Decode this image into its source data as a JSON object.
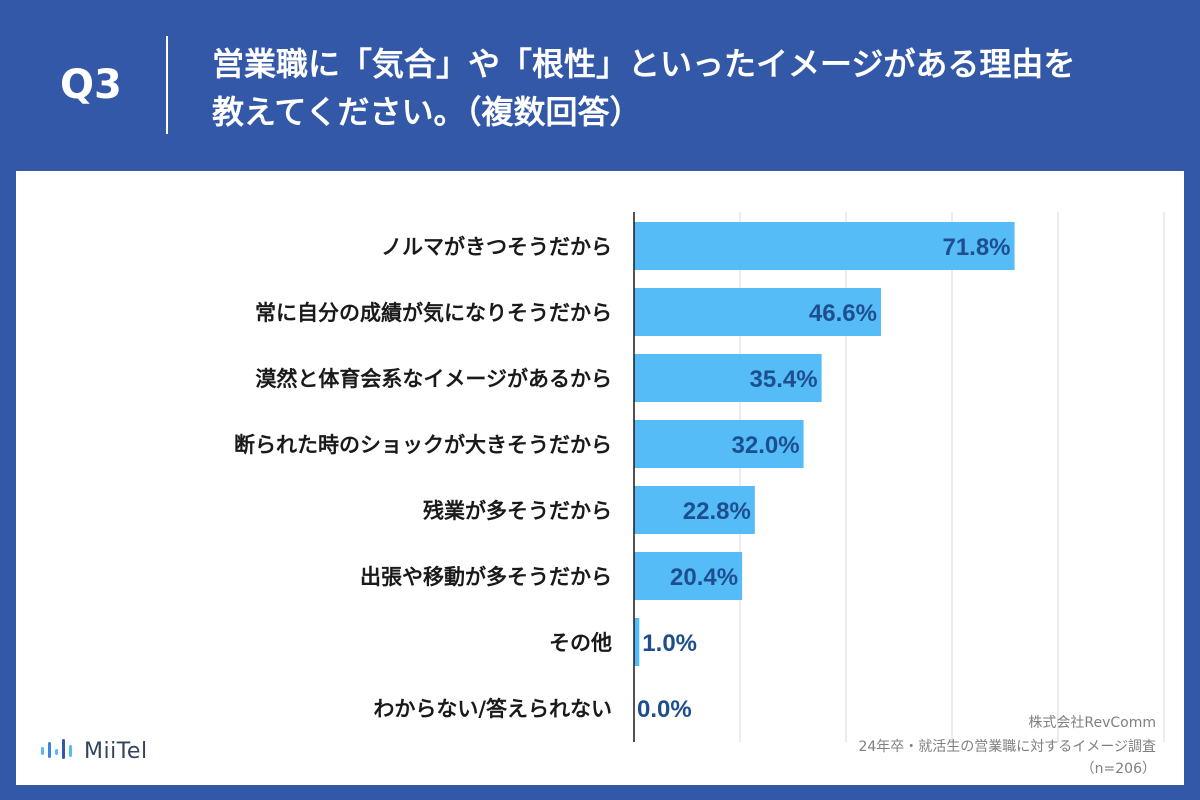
{
  "header": {
    "q_label": "Q3",
    "title": "営業職に「気合」や「根性」といったイメージがある理由を\n教えてください。（複数回答）"
  },
  "chart_data": {
    "type": "bar",
    "orientation": "horizontal",
    "categories": [
      "ノルマがきつそうだから",
      "常に自分の成績が気になりそうだから",
      "漠然と体育会系なイメージがあるから",
      "断られた時のショックが大きそうだから",
      "残業が多そうだから",
      "出張や移動が多そうだから",
      "その他",
      "わからない/答えられない"
    ],
    "values": [
      71.8,
      46.6,
      35.4,
      32.0,
      22.8,
      20.4,
      1.0,
      0.0
    ],
    "value_labels": [
      "71.8%",
      "46.6%",
      "35.4%",
      "32.0%",
      "22.8%",
      "20.4%",
      "1.0%",
      "0.0%"
    ],
    "xlim": [
      0,
      100
    ],
    "grid_step": 20,
    "grid": true,
    "bar_color": "#55bcf8",
    "label_color": "#1d4f8f"
  },
  "footer": {
    "company": "株式会社RevComm",
    "survey": "24年卒・就活生の営業職に対するイメージ調査",
    "sample": "（n=206）"
  },
  "logo": {
    "name": "MiiTel",
    "icon": "miitel-soundwave-icon"
  }
}
